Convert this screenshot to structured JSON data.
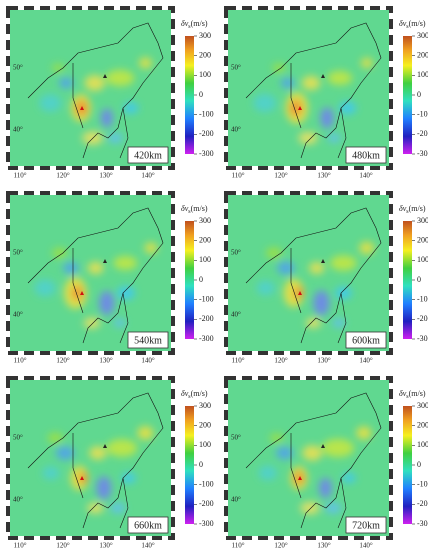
{
  "figure": {
    "colorbar": {
      "symbol": "δv",
      "subscript": "s",
      "unit": "(m/s)",
      "ticks": [
        300,
        200,
        100,
        0,
        -100,
        -200,
        -300
      ]
    },
    "lon_labels": [
      "110°",
      "120°",
      "130°",
      "140°"
    ],
    "lat_labels": [
      "50°",
      "40°"
    ],
    "panels": [
      {
        "depth": "420km"
      },
      {
        "depth": "480km"
      },
      {
        "depth": "540km"
      },
      {
        "depth": "600km"
      },
      {
        "depth": "660km"
      },
      {
        "depth": "720km"
      }
    ]
  }
}
